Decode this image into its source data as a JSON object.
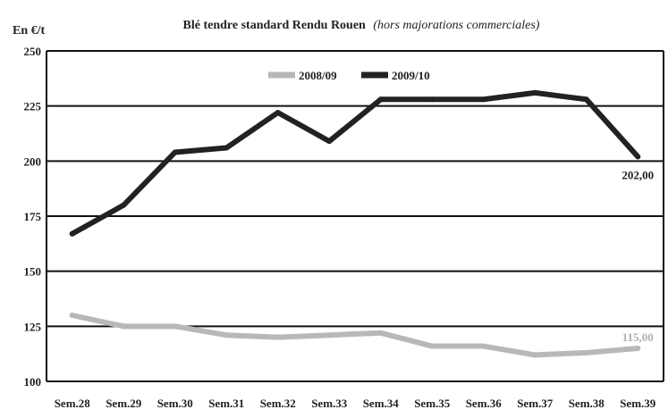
{
  "chart_data": {
    "type": "line",
    "title": "Blé tendre standard Rendu Rouen",
    "subtitle": "(hors majorations commerciales)",
    "ylabel": "En €/t",
    "xlabel": "",
    "ylim": [
      100,
      250
    ],
    "yticks": [
      100,
      125,
      150,
      175,
      200,
      225,
      250
    ],
    "grid": true,
    "legend_position": "top",
    "categories": [
      "Sem.28",
      "Sem.29",
      "Sem.30",
      "Sem.31",
      "Sem.32",
      "Sem.33",
      "Sem.34",
      "Sem.35",
      "Sem.36",
      "Sem.37",
      "Sem.38",
      "Sem.39"
    ],
    "series": [
      {
        "name": "2008/09",
        "color": "#b8b8b8",
        "values": [
          130,
          125,
          125,
          121,
          120,
          121,
          122,
          116,
          116,
          112,
          113,
          115
        ],
        "end_label": "115,00"
      },
      {
        "name": "2009/10",
        "color": "#222222",
        "values": [
          167,
          180,
          204,
          206,
          222,
          209,
          228,
          228,
          228,
          231,
          228,
          202
        ],
        "end_label": "202,00"
      }
    ]
  }
}
